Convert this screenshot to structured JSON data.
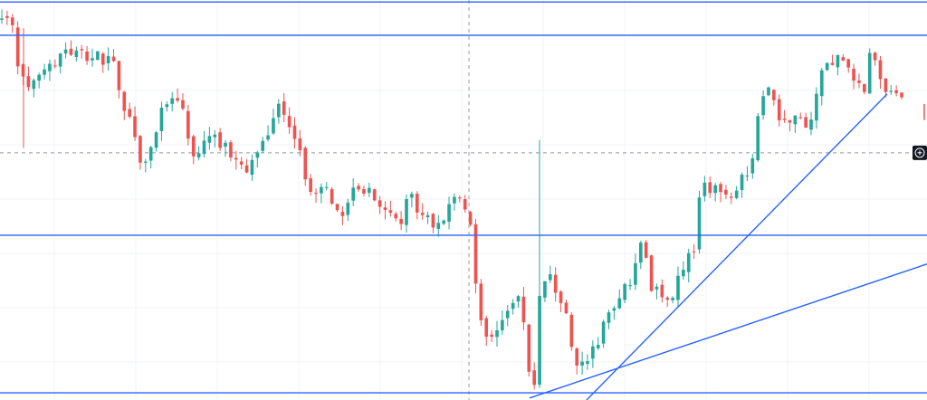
{
  "chart_data": {
    "type": "candlestick",
    "y_range": [
      0,
      100
    ],
    "x_range": [
      0,
      1024
    ],
    "colors": {
      "up": "#26a69a",
      "down": "#ef5350",
      "drawing": "#2962ff",
      "crosshair": "#9598a1",
      "grid": "#f0f3fa",
      "badge_bg": "#131722",
      "badge_fg": "#ffffff"
    },
    "crosshair": {
      "x": 518,
      "y": 61.8
    },
    "horizontal_lines": [
      {
        "id": "level-top",
        "y": 99.5
      },
      {
        "id": "level-upper",
        "y": 91.2
      },
      {
        "id": "level-middle",
        "y": 41.2
      },
      {
        "id": "level-bottom",
        "y": 1.8
      }
    ],
    "trendlines": [
      {
        "id": "trend-steep",
        "x1": 648,
        "y1": 0,
        "x2": 980,
        "y2": 76.5
      },
      {
        "id": "trend-shallow",
        "x1": 585,
        "y1": 0.5,
        "x2": 1024,
        "y2": 34
      }
    ],
    "price_anchors": [
      [
        2,
        95
      ],
      [
        14,
        96
      ],
      [
        24,
        82
      ],
      [
        34,
        77
      ],
      [
        44,
        80
      ],
      [
        56,
        83
      ],
      [
        72,
        87
      ],
      [
        90,
        86
      ],
      [
        110,
        86
      ],
      [
        128,
        84
      ],
      [
        140,
        72
      ],
      [
        150,
        68
      ],
      [
        160,
        58
      ],
      [
        172,
        63
      ],
      [
        184,
        74
      ],
      [
        196,
        76
      ],
      [
        205,
        72
      ],
      [
        214,
        60
      ],
      [
        224,
        63
      ],
      [
        238,
        66
      ],
      [
        252,
        63
      ],
      [
        264,
        61
      ],
      [
        276,
        58
      ],
      [
        290,
        61
      ],
      [
        300,
        68
      ],
      [
        310,
        74
      ],
      [
        322,
        70
      ],
      [
        334,
        62
      ],
      [
        342,
        52
      ],
      [
        352,
        50
      ],
      [
        362,
        54
      ],
      [
        372,
        47
      ],
      [
        384,
        47
      ],
      [
        396,
        53
      ],
      [
        410,
        52
      ],
      [
        422,
        47
      ],
      [
        432,
        47
      ],
      [
        444,
        43
      ],
      [
        456,
        52
      ],
      [
        466,
        47
      ],
      [
        478,
        44
      ],
      [
        492,
        45
      ],
      [
        506,
        50
      ],
      [
        514,
        51
      ],
      [
        524,
        43
      ],
      [
        530,
        25
      ],
      [
        538,
        16
      ],
      [
        552,
        18
      ],
      [
        566,
        24
      ],
      [
        578,
        25
      ],
      [
        588,
        6
      ],
      [
        594,
        4
      ],
      [
        600,
        31
      ],
      [
        612,
        30
      ],
      [
        626,
        23
      ],
      [
        636,
        11
      ],
      [
        646,
        8
      ],
      [
        658,
        12
      ],
      [
        670,
        19
      ],
      [
        684,
        25
      ],
      [
        700,
        30
      ],
      [
        712,
        40
      ],
      [
        722,
        28
      ],
      [
        734,
        27
      ],
      [
        746,
        25
      ],
      [
        756,
        33
      ],
      [
        766,
        36
      ],
      [
        772,
        40
      ],
      [
        778,
        57
      ],
      [
        788,
        53
      ],
      [
        800,
        52
      ],
      [
        814,
        52
      ],
      [
        826,
        56
      ],
      [
        834,
        59
      ],
      [
        842,
        74
      ],
      [
        852,
        77
      ],
      [
        864,
        71
      ],
      [
        874,
        71
      ],
      [
        884,
        70
      ],
      [
        896,
        68
      ],
      [
        904,
        76
      ],
      [
        912,
        84
      ],
      [
        924,
        85
      ],
      [
        936,
        86
      ],
      [
        946,
        81
      ],
      [
        956,
        76
      ],
      [
        964,
        86
      ],
      [
        972,
        83
      ],
      [
        980,
        78
      ],
      [
        988,
        78
      ],
      [
        996,
        75
      ]
    ],
    "candle_count": 170,
    "seed": 20240607
  }
}
